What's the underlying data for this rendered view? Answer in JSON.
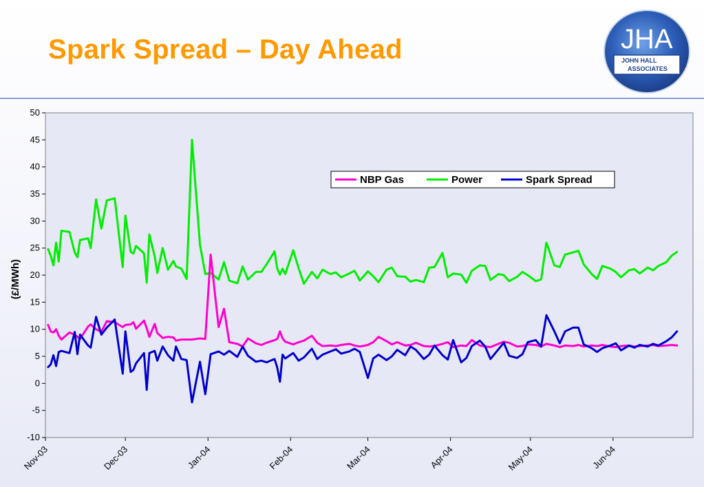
{
  "slide": {
    "title": "Spark Spread – Day Ahead"
  },
  "logo": {
    "letters": "JHA",
    "line1": "JOHN HALL",
    "line2": "ASSOCIATES",
    "accent_color": "#2a5cc4"
  },
  "chart_data": {
    "type": "line",
    "title": "",
    "xlabel": "",
    "ylabel": "(£/MWh)",
    "ylim": [
      -10,
      50
    ],
    "yticks": [
      -10,
      -5,
      0,
      5,
      10,
      15,
      20,
      25,
      30,
      35,
      40,
      45,
      50
    ],
    "x_tick_labels": [
      "Nov-03",
      "Dec-03",
      "Jan-04",
      "Feb-04",
      "Mar-04",
      "Apr-04",
      "May-04",
      "Jun-04"
    ],
    "x_start": "2003-11-01",
    "grid": false,
    "legend_position": "top-right",
    "plot_background": "#e6e8f5",
    "x": [
      "2003-11-02",
      "2003-11-03",
      "2003-11-04",
      "2003-11-05",
      "2003-11-06",
      "2003-11-07",
      "2003-11-10",
      "2003-11-12",
      "2003-11-13",
      "2003-11-14",
      "2003-11-17",
      "2003-11-18",
      "2003-11-20",
      "2003-11-22",
      "2003-11-24",
      "2003-11-27",
      "2003-11-30",
      "2003-12-01",
      "2003-12-03",
      "2003-12-04",
      "2003-12-05",
      "2003-12-08",
      "2003-12-09",
      "2003-12-10",
      "2003-12-12",
      "2003-12-13",
      "2003-12-15",
      "2003-12-17",
      "2003-12-19",
      "2003-12-20",
      "2003-12-22",
      "2003-12-24",
      "2003-12-26",
      "2003-12-29",
      "2003-12-31",
      "2004-01-02",
      "2004-01-05",
      "2004-01-07",
      "2004-01-09",
      "2004-01-12",
      "2004-01-14",
      "2004-01-16",
      "2004-01-19",
      "2004-01-21",
      "2004-01-23",
      "2004-01-26",
      "2004-01-27",
      "2004-01-28",
      "2004-01-29",
      "2004-01-30",
      "2004-02-02",
      "2004-02-04",
      "2004-02-06",
      "2004-02-09",
      "2004-02-11",
      "2004-02-13",
      "2004-02-16",
      "2004-02-18",
      "2004-02-20",
      "2004-02-23",
      "2004-02-25",
      "2004-02-27",
      "2004-03-01",
      "2004-03-03",
      "2004-03-05",
      "2004-03-08",
      "2004-03-10",
      "2004-03-12",
      "2004-03-15",
      "2004-03-17",
      "2004-03-19",
      "2004-03-22",
      "2004-03-24",
      "2004-03-26",
      "2004-03-29",
      "2004-03-31",
      "2004-04-02",
      "2004-04-05",
      "2004-04-07",
      "2004-04-09",
      "2004-04-12",
      "2004-04-14",
      "2004-04-16",
      "2004-04-19",
      "2004-04-21",
      "2004-04-23",
      "2004-04-26",
      "2004-04-28",
      "2004-04-30",
      "2004-05-03",
      "2004-05-05",
      "2004-05-07",
      "2004-05-10",
      "2004-05-12",
      "2004-05-14",
      "2004-05-17",
      "2004-05-19",
      "2004-05-21",
      "2004-05-24",
      "2004-05-26",
      "2004-05-28",
      "2004-05-31",
      "2004-06-02",
      "2004-06-04",
      "2004-06-07",
      "2004-06-09",
      "2004-06-11",
      "2004-06-14",
      "2004-06-16",
      "2004-06-18",
      "2004-06-21",
      "2004-06-23",
      "2004-06-25"
    ],
    "series": [
      {
        "name": "NBP Gas",
        "color": "#ff00cc",
        "values": [
          10.8,
          9.6,
          9.4,
          10.0,
          8.8,
          8.1,
          9.4,
          9.0,
          8.6,
          8.2,
          10.5,
          10.9,
          10.0,
          9.5,
          11.5,
          11.3,
          10.4,
          10.8,
          10.9,
          11.3,
          10.1,
          11.6,
          10.2,
          8.6,
          11.0,
          9.3,
          8.4,
          8.6,
          8.5,
          7.9,
          8.1,
          8.1,
          8.1,
          8.3,
          8.2,
          23.8,
          10.4,
          13.8,
          7.6,
          7.3,
          6.8,
          8.3,
          7.4,
          7.1,
          7.5,
          8.0,
          8.2,
          9.6,
          8.3,
          7.7,
          7.2,
          7.6,
          7.9,
          8.8,
          7.5,
          6.9,
          7.0,
          6.9,
          7.1,
          7.3,
          7.0,
          6.8,
          7.1,
          7.6,
          8.6,
          7.8,
          7.2,
          7.6,
          7.0,
          7.1,
          7.5,
          6.9,
          6.8,
          6.9,
          7.3,
          7.6,
          6.7,
          7.0,
          6.9,
          8.0,
          7.0,
          6.8,
          6.7,
          7.3,
          7.7,
          7.5,
          6.8,
          6.9,
          7.2,
          7.1,
          6.8,
          7.3,
          7.0,
          6.7,
          7.0,
          6.9,
          7.1,
          6.8,
          7.0,
          6.9,
          7.1,
          6.8,
          6.7,
          6.9,
          7.0,
          6.8,
          6.9,
          7.0,
          7.1,
          6.9,
          7.0,
          7.1,
          7.0
        ]
      },
      {
        "name": "Power",
        "color": "#00ee00",
        "values": [
          24.8,
          23.6,
          21.8,
          26.0,
          22.5,
          28.2,
          28.0,
          24.2,
          23.3,
          26.5,
          26.8,
          25.0,
          34.0,
          28.6,
          33.8,
          34.2,
          21.5,
          31.0,
          24.3,
          24.0,
          25.4,
          24.0,
          18.6,
          27.5,
          23.5,
          20.4,
          25.0,
          21.0,
          22.6,
          21.6,
          21.2,
          19.3,
          45.0,
          25.6,
          20.2,
          20.4,
          19.2,
          22.4,
          19.0,
          18.5,
          21.6,
          19.2,
          20.6,
          20.6,
          22.0,
          24.4,
          21.2,
          20.1,
          21.2,
          20.2,
          24.6,
          21.3,
          18.4,
          20.6,
          19.4,
          21.0,
          20.2,
          20.5,
          19.6,
          20.3,
          20.8,
          19.0,
          20.7,
          19.8,
          18.7,
          21.0,
          21.4,
          19.8,
          19.7,
          18.8,
          19.1,
          18.7,
          21.4,
          21.5,
          24.1,
          19.6,
          20.3,
          20.1,
          18.6,
          20.8,
          21.8,
          21.7,
          19.1,
          20.2,
          20.0,
          18.9,
          19.7,
          20.6,
          20.0,
          18.9,
          19.2,
          26.0,
          21.8,
          21.5,
          23.8,
          24.2,
          24.5,
          22.0,
          20.2,
          19.3,
          21.7,
          21.2,
          20.6,
          19.6,
          20.9,
          21.1,
          20.3,
          21.4,
          20.9,
          21.7,
          22.4,
          23.6,
          24.3
        ]
      },
      {
        "name": "Spark Spread",
        "color": "#0000cc",
        "values": [
          3.0,
          3.5,
          5.2,
          3.2,
          5.8,
          6.0,
          5.6,
          9.5,
          5.4,
          9.0,
          7.0,
          6.6,
          12.3,
          9.0,
          10.3,
          11.8,
          1.8,
          9.6,
          2.1,
          2.5,
          3.7,
          5.6,
          -1.2,
          5.6,
          6.0,
          4.2,
          6.8,
          5.2,
          4.2,
          6.8,
          4.5,
          4.3,
          -3.5,
          4.0,
          -2.0,
          5.4,
          5.9,
          5.3,
          6.0,
          4.9,
          6.8,
          5.1,
          4.0,
          4.2,
          3.9,
          4.5,
          2.9,
          0.3,
          5.3,
          4.6,
          5.6,
          4.2,
          4.8,
          6.4,
          4.5,
          5.3,
          5.9,
          6.3,
          5.5,
          5.9,
          6.4,
          5.8,
          1.0,
          4.6,
          5.3,
          4.3,
          5.0,
          6.2,
          5.2,
          6.8,
          6.2,
          4.5,
          5.3,
          7.0,
          5.2,
          4.4,
          8.0,
          3.9,
          4.7,
          6.9,
          7.9,
          6.8,
          4.5,
          6.3,
          7.5,
          5.1,
          4.7,
          5.4,
          7.6,
          8.0,
          6.8,
          12.6,
          9.6,
          7.4,
          9.6,
          10.3,
          10.3,
          7.2,
          6.5,
          5.8,
          6.5,
          7.0,
          7.4,
          6.1,
          7.0,
          6.6,
          7.1,
          6.8,
          7.3,
          7.0,
          7.8,
          8.5,
          9.6
        ]
      }
    ]
  }
}
